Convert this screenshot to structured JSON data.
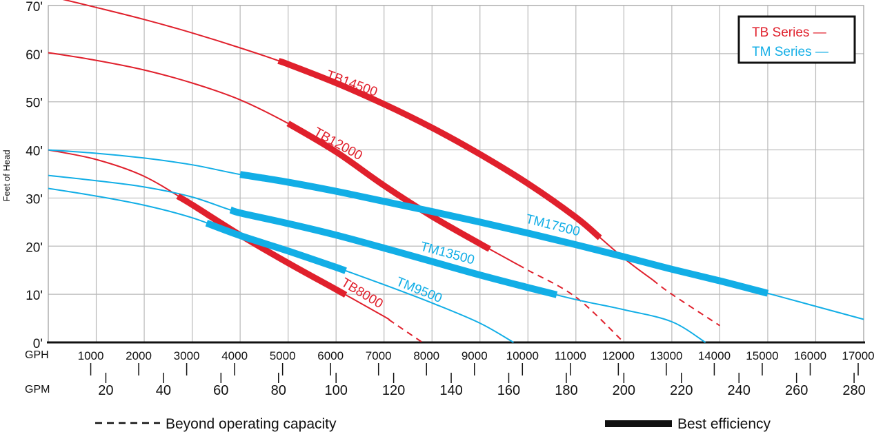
{
  "chart_data": {
    "type": "line",
    "ylabel": "Feet of Head",
    "y_tick_labels": [
      "0'",
      "10'",
      "20'",
      "30'",
      "40'",
      "50'",
      "60'",
      "70'"
    ],
    "y_ticks": [
      0,
      10,
      20,
      30,
      40,
      50,
      60,
      70
    ],
    "ylim": [
      0,
      70
    ],
    "xlim": [
      0,
      17000
    ],
    "x_unit_label": "GPH",
    "x_ticks": [
      1000,
      2000,
      3000,
      4000,
      5000,
      6000,
      7000,
      8000,
      9000,
      10000,
      11000,
      12000,
      13000,
      14000,
      15000,
      16000,
      17000
    ],
    "x_tick_labels": [
      "1000",
      "2000",
      "3000",
      "4000",
      "5000",
      "6000",
      "7000",
      "8000",
      "9000",
      "10000",
      "11000",
      "12000",
      "13000",
      "14000",
      "15000",
      "16000",
      "17000"
    ],
    "x2_unit_label": "GPM",
    "x2_ticks": [
      20,
      40,
      60,
      80,
      100,
      120,
      140,
      160,
      180,
      200,
      220,
      240,
      260,
      280
    ],
    "x2_tick_labels": [
      "20",
      "40",
      "60",
      "80",
      "100",
      "120",
      "140",
      "160",
      "180",
      "200",
      "220",
      "240",
      "260",
      "280"
    ],
    "grid": true,
    "legend": {
      "placement": "top-right",
      "entries": [
        {
          "label": "TB Series —",
          "color": "#e0202c"
        },
        {
          "label": "TM Series —",
          "color": "#12aee6"
        }
      ]
    },
    "bottom_legend": {
      "dashed_label": "Beyond operating capacity",
      "thick_label": "Best efficiency"
    },
    "series": [
      {
        "name": "TB14500",
        "group": "TB",
        "color": "#e0202c",
        "points": [
          [
            0,
            72
          ],
          [
            1000,
            69.6
          ],
          [
            2000,
            67.1
          ],
          [
            3000,
            64.3
          ],
          [
            4000,
            61.2
          ],
          [
            5000,
            57.8
          ],
          [
            6000,
            53.9
          ],
          [
            7000,
            49.5
          ],
          [
            8000,
            44.6
          ],
          [
            9000,
            39.1
          ],
          [
            10000,
            33
          ],
          [
            11000,
            26
          ],
          [
            12000,
            17.5
          ],
          [
            13000,
            10
          ],
          [
            14000,
            3.5
          ]
        ],
        "best_efficiency": [
          4800,
          11500
        ],
        "beyond_capacity_from": 12600
      },
      {
        "name": "TB12000",
        "group": "TB",
        "color": "#e0202c",
        "points": [
          [
            0,
            60.2
          ],
          [
            1000,
            58.6
          ],
          [
            2000,
            56.6
          ],
          [
            3000,
            53.9
          ],
          [
            4000,
            50.4
          ],
          [
            5000,
            45.5
          ],
          [
            6000,
            39.6
          ],
          [
            7000,
            32.6
          ],
          [
            8000,
            26.2
          ],
          [
            9000,
            20.5
          ],
          [
            10000,
            15
          ],
          [
            11000,
            9.4
          ],
          [
            12000,
            0
          ]
        ],
        "best_efficiency": [
          5000,
          9200
        ],
        "beyond_capacity_from": 9800
      },
      {
        "name": "TB8000",
        "group": "TB",
        "color": "#e0202c",
        "points": [
          [
            0,
            40
          ],
          [
            1000,
            38
          ],
          [
            2000,
            34.5
          ],
          [
            3000,
            28.6
          ],
          [
            4000,
            22.3
          ],
          [
            5000,
            16.5
          ],
          [
            6000,
            11
          ],
          [
            7000,
            5.4
          ],
          [
            7800,
            0
          ]
        ],
        "best_efficiency": [
          2700,
          6200
        ],
        "beyond_capacity_from": 7100
      },
      {
        "name": "TM17500",
        "group": "TM",
        "color": "#12aee6",
        "points": [
          [
            0,
            40
          ],
          [
            1000,
            39.3
          ],
          [
            2000,
            38.3
          ],
          [
            3000,
            36.9
          ],
          [
            4000,
            34.9
          ],
          [
            5000,
            33.3
          ],
          [
            6000,
            31.4
          ],
          [
            7000,
            29.3
          ],
          [
            8000,
            27.2
          ],
          [
            9000,
            25
          ],
          [
            10000,
            22.7
          ],
          [
            11000,
            20.3
          ],
          [
            12000,
            17.8
          ],
          [
            13000,
            15.2
          ],
          [
            14000,
            12.8
          ],
          [
            15000,
            10.2
          ],
          [
            16000,
            7.5
          ],
          [
            17000,
            4.8
          ]
        ],
        "best_efficiency": [
          4000,
          15000
        ]
      },
      {
        "name": "TM13500",
        "group": "TM",
        "color": "#12aee6",
        "points": [
          [
            0,
            34.7
          ],
          [
            1000,
            33.6
          ],
          [
            2000,
            32.3
          ],
          [
            3000,
            30.2
          ],
          [
            4000,
            26.9
          ],
          [
            5000,
            24.7
          ],
          [
            6000,
            22.3
          ],
          [
            7000,
            19.6
          ],
          [
            8000,
            16.8
          ],
          [
            9000,
            14
          ],
          [
            10000,
            11.4
          ],
          [
            11000,
            8.9
          ],
          [
            12000,
            6.8
          ],
          [
            13000,
            4.3
          ],
          [
            13700,
            0
          ]
        ],
        "best_efficiency": [
          3800,
          10600
        ]
      },
      {
        "name": "TM9500",
        "group": "TM",
        "color": "#12aee6",
        "points": [
          [
            0,
            32
          ],
          [
            1000,
            30.4
          ],
          [
            2000,
            28.5
          ],
          [
            3000,
            25.9
          ],
          [
            4000,
            22.2
          ],
          [
            5000,
            19
          ],
          [
            6000,
            15.6
          ],
          [
            7000,
            12
          ],
          [
            8000,
            8.2
          ],
          [
            9000,
            4
          ],
          [
            9700,
            0
          ]
        ],
        "best_efficiency": [
          3300,
          6200
        ]
      }
    ],
    "series_labels": [
      {
        "series": "TB14500",
        "text": "TB14500",
        "at": [
          6300,
          53
        ],
        "angle": 20
      },
      {
        "series": "TB12000",
        "text": "TB12000",
        "at": [
          6000,
          40.5
        ],
        "angle": 29
      },
      {
        "series": "TB8000",
        "text": "TB8000",
        "at": [
          6500,
          9.5
        ],
        "angle": 31
      },
      {
        "series": "TM17500",
        "text": "TM17500",
        "at": [
          10500,
          23.5
        ],
        "angle": 14
      },
      {
        "series": "TM13500",
        "text": "TM13500",
        "at": [
          8300,
          17.7
        ],
        "angle": 15
      },
      {
        "series": "TM9500",
        "text": "TM9500",
        "at": [
          7700,
          10.1
        ],
        "angle": 22
      }
    ]
  }
}
